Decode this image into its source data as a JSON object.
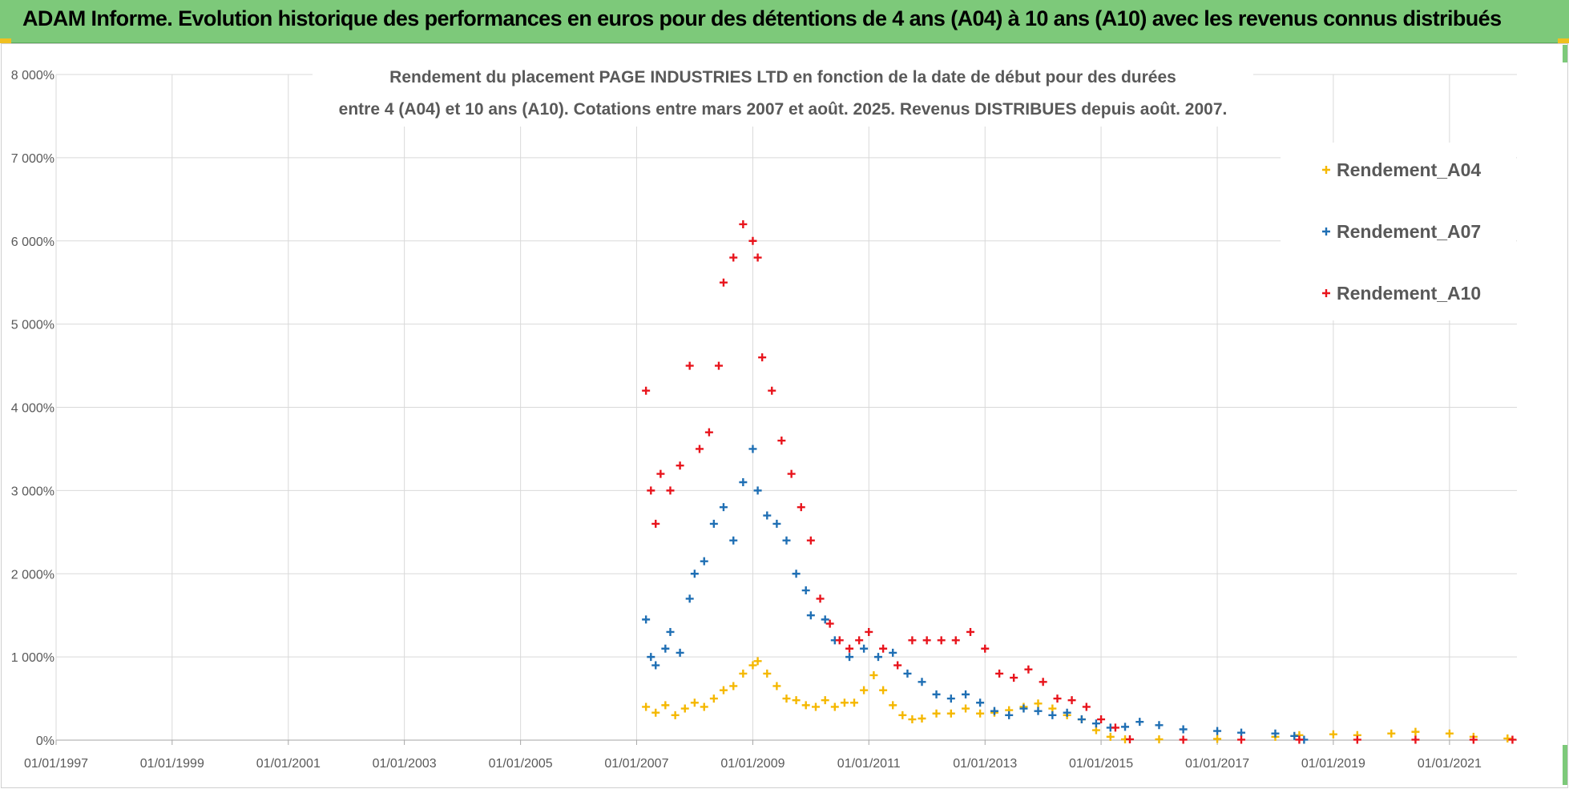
{
  "banner": {
    "title": "ADAM Informe. Evolution historique des performances en euros pour des détentions de 4 ans (A04) à 10 ans (A10) avec les revenus connus distribués"
  },
  "colors": {
    "banner_bg": "#7dc97a",
    "A04": "#f5b800",
    "A07": "#1f6fb4",
    "A10": "#e8141c",
    "grid": "#d9d9d9"
  },
  "chart_data": {
    "type": "scatter",
    "title_lines": [
      "Rendement du placement PAGE INDUSTRIES LTD en fonction de la date de début pour des durées",
      "entre 4 (A04) et 10 ans (A10). Cotations entre mars 2007 et août. 2025. Revenus DISTRIBUES depuis août. 2007."
    ],
    "x_axis": {
      "type": "date",
      "range": [
        "1997-01-01",
        "2022-03-01"
      ],
      "tick_labels": [
        "01/01/1997",
        "01/01/1999",
        "01/01/2001",
        "01/01/2003",
        "01/01/2005",
        "01/01/2007",
        "01/01/2009",
        "01/01/2011",
        "01/01/2013",
        "01/01/2015",
        "01/01/2017",
        "01/01/2019",
        "01/01/2021"
      ]
    },
    "y_axis": {
      "range": [
        0,
        8000
      ],
      "unit": "%",
      "tick_labels": [
        "0%",
        "1 000%",
        "2 000%",
        "3 000%",
        "4 000%",
        "5 000%",
        "6 000%",
        "7 000%",
        "8 000%"
      ]
    },
    "grid": true,
    "legend_position": "top-right",
    "marker": "+",
    "series": [
      {
        "name": "Rendement_A04",
        "color": "#f5b800",
        "points": [
          [
            "2007-03-01",
            400
          ],
          [
            "2007-05-01",
            330
          ],
          [
            "2007-07-01",
            420
          ],
          [
            "2007-09-01",
            300
          ],
          [
            "2007-11-01",
            380
          ],
          [
            "2008-01-01",
            450
          ],
          [
            "2008-03-01",
            400
          ],
          [
            "2008-05-01",
            500
          ],
          [
            "2008-07-01",
            600
          ],
          [
            "2008-09-01",
            650
          ],
          [
            "2008-11-01",
            800
          ],
          [
            "2009-01-01",
            900
          ],
          [
            "2009-02-01",
            950
          ],
          [
            "2009-04-01",
            800
          ],
          [
            "2009-06-01",
            650
          ],
          [
            "2009-08-01",
            500
          ],
          [
            "2009-10-01",
            480
          ],
          [
            "2009-12-01",
            420
          ],
          [
            "2010-02-01",
            400
          ],
          [
            "2010-04-01",
            480
          ],
          [
            "2010-06-01",
            400
          ],
          [
            "2010-08-01",
            450
          ],
          [
            "2010-10-01",
            450
          ],
          [
            "2010-12-01",
            600
          ],
          [
            "2011-02-01",
            780
          ],
          [
            "2011-04-01",
            600
          ],
          [
            "2011-06-01",
            420
          ],
          [
            "2011-08-01",
            300
          ],
          [
            "2011-10-01",
            250
          ],
          [
            "2011-12-01",
            260
          ],
          [
            "2012-03-01",
            320
          ],
          [
            "2012-06-01",
            320
          ],
          [
            "2012-09-01",
            380
          ],
          [
            "2012-12-01",
            320
          ],
          [
            "2013-03-01",
            330
          ],
          [
            "2013-06-01",
            360
          ],
          [
            "2013-09-01",
            400
          ],
          [
            "2013-12-01",
            440
          ],
          [
            "2014-03-01",
            380
          ],
          [
            "2014-06-01",
            300
          ],
          [
            "2014-09-01",
            250
          ],
          [
            "2014-12-01",
            120
          ],
          [
            "2015-03-01",
            40
          ],
          [
            "2015-06-01",
            10
          ],
          [
            "2016-01-01",
            10
          ],
          [
            "2017-01-01",
            15
          ],
          [
            "2018-01-01",
            40
          ],
          [
            "2018-06-01",
            60
          ],
          [
            "2019-01-01",
            70
          ],
          [
            "2019-06-01",
            60
          ],
          [
            "2020-01-01",
            80
          ],
          [
            "2020-06-01",
            100
          ],
          [
            "2021-01-01",
            80
          ],
          [
            "2021-06-01",
            40
          ],
          [
            "2022-01-01",
            20
          ]
        ]
      },
      {
        "name": "Rendement_A07",
        "color": "#1f6fb4",
        "points": [
          [
            "2007-03-01",
            1450
          ],
          [
            "2007-04-01",
            1000
          ],
          [
            "2007-05-01",
            900
          ],
          [
            "2007-07-01",
            1100
          ],
          [
            "2007-08-01",
            1300
          ],
          [
            "2007-10-01",
            1050
          ],
          [
            "2007-12-01",
            1700
          ],
          [
            "2008-01-01",
            2000
          ],
          [
            "2008-03-01",
            2150
          ],
          [
            "2008-05-01",
            2600
          ],
          [
            "2008-07-01",
            2800
          ],
          [
            "2008-09-01",
            2400
          ],
          [
            "2008-11-01",
            3100
          ],
          [
            "2009-01-01",
            3500
          ],
          [
            "2009-02-01",
            3000
          ],
          [
            "2009-04-01",
            2700
          ],
          [
            "2009-06-01",
            2600
          ],
          [
            "2009-08-01",
            2400
          ],
          [
            "2009-10-01",
            2000
          ],
          [
            "2009-12-01",
            1800
          ],
          [
            "2010-01-01",
            1500
          ],
          [
            "2010-04-01",
            1450
          ],
          [
            "2010-06-01",
            1200
          ],
          [
            "2010-09-01",
            1000
          ],
          [
            "2010-12-01",
            1100
          ],
          [
            "2011-03-01",
            1000
          ],
          [
            "2011-06-01",
            1050
          ],
          [
            "2011-09-01",
            800
          ],
          [
            "2011-12-01",
            700
          ],
          [
            "2012-03-01",
            550
          ],
          [
            "2012-06-01",
            500
          ],
          [
            "2012-09-01",
            550
          ],
          [
            "2012-12-01",
            450
          ],
          [
            "2013-03-01",
            350
          ],
          [
            "2013-06-01",
            300
          ],
          [
            "2013-09-01",
            380
          ],
          [
            "2013-12-01",
            350
          ],
          [
            "2014-03-01",
            300
          ],
          [
            "2014-06-01",
            330
          ],
          [
            "2014-09-01",
            250
          ],
          [
            "2014-12-01",
            200
          ],
          [
            "2015-03-01",
            150
          ],
          [
            "2015-06-01",
            160
          ],
          [
            "2015-09-01",
            220
          ],
          [
            "2016-01-01",
            180
          ],
          [
            "2016-06-01",
            130
          ],
          [
            "2017-01-01",
            110
          ],
          [
            "2017-06-01",
            90
          ],
          [
            "2018-01-01",
            80
          ],
          [
            "2018-05-01",
            50
          ],
          [
            "2018-07-01",
            5
          ]
        ]
      },
      {
        "name": "Rendement_A10",
        "color": "#e8141c",
        "points": [
          [
            "2007-03-01",
            4200
          ],
          [
            "2007-04-01",
            3000
          ],
          [
            "2007-05-01",
            2600
          ],
          [
            "2007-06-01",
            3200
          ],
          [
            "2007-08-01",
            3000
          ],
          [
            "2007-10-01",
            3300
          ],
          [
            "2007-12-01",
            4500
          ],
          [
            "2008-02-01",
            3500
          ],
          [
            "2008-04-01",
            3700
          ],
          [
            "2008-06-01",
            4500
          ],
          [
            "2008-07-01",
            5500
          ],
          [
            "2008-09-01",
            5800
          ],
          [
            "2008-11-01",
            6200
          ],
          [
            "2009-01-01",
            6000
          ],
          [
            "2009-02-01",
            5800
          ],
          [
            "2009-03-01",
            4600
          ],
          [
            "2009-05-01",
            4200
          ],
          [
            "2009-07-01",
            3600
          ],
          [
            "2009-09-01",
            3200
          ],
          [
            "2009-11-01",
            2800
          ],
          [
            "2010-01-01",
            2400
          ],
          [
            "2010-03-01",
            1700
          ],
          [
            "2010-05-01",
            1400
          ],
          [
            "2010-07-01",
            1200
          ],
          [
            "2010-09-01",
            1100
          ],
          [
            "2010-11-01",
            1200
          ],
          [
            "2011-01-01",
            1300
          ],
          [
            "2011-04-01",
            1100
          ],
          [
            "2011-07-01",
            900
          ],
          [
            "2011-10-01",
            1200
          ],
          [
            "2012-01-01",
            1200
          ],
          [
            "2012-04-01",
            1200
          ],
          [
            "2012-07-01",
            1200
          ],
          [
            "2012-10-01",
            1300
          ],
          [
            "2013-01-01",
            1100
          ],
          [
            "2013-04-01",
            800
          ],
          [
            "2013-07-01",
            750
          ],
          [
            "2013-10-01",
            850
          ],
          [
            "2014-01-01",
            700
          ],
          [
            "2014-04-01",
            500
          ],
          [
            "2014-07-01",
            480
          ],
          [
            "2014-10-01",
            400
          ],
          [
            "2015-01-01",
            250
          ],
          [
            "2015-04-01",
            150
          ],
          [
            "2015-07-01",
            10
          ],
          [
            "2016-06-01",
            5
          ],
          [
            "2017-06-01",
            5
          ],
          [
            "2018-06-01",
            5
          ],
          [
            "2019-06-01",
            5
          ],
          [
            "2020-06-01",
            5
          ],
          [
            "2021-06-01",
            5
          ],
          [
            "2022-02-01",
            5
          ]
        ]
      }
    ]
  }
}
